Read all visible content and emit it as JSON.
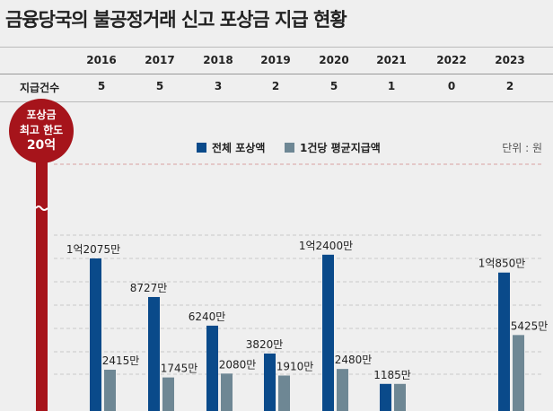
{
  "title": "금융당국의 불공정거래 신고 포상금 지급 현황",
  "row_label": "지급건수",
  "years": [
    "2016",
    "2017",
    "2018",
    "2019",
    "2020",
    "2021",
    "2022",
    "2023"
  ],
  "counts": [
    "5",
    "5",
    "3",
    "2",
    "5",
    "1",
    "0",
    "2"
  ],
  "badge": {
    "line1": "포상금",
    "line2": "최고 한도",
    "line3": "20억"
  },
  "unit": "단위 : 원",
  "colors": {
    "total": "#0a4a8a",
    "avg": "#6e8794",
    "limit": "#a6141b"
  },
  "chart_data": {
    "type": "bar",
    "title": "금융당국의 불공정거래 신고 포상금 지급 현황",
    "categories": [
      "2016",
      "2017",
      "2018",
      "2019",
      "2020",
      "2021",
      "2022",
      "2023"
    ],
    "unit": "만원",
    "series": [
      {
        "name": "전체 포상액",
        "values": [
          12075,
          8727,
          6240,
          3820,
          12400,
          1185,
          0,
          10850
        ],
        "labels": [
          "1억2075만",
          "8727만",
          "6240만",
          "3820만",
          "1억2400만",
          "",
          "",
          "1억850만"
        ]
      },
      {
        "name": "1건당 평균지급액",
        "values": [
          2415,
          1745,
          2080,
          1910,
          2480,
          1185,
          0,
          5425
        ],
        "labels": [
          "2415만",
          "1745만",
          "2080만",
          "1910만",
          "2480만",
          "1185만",
          "",
          "5425만"
        ]
      }
    ],
    "annotation": "포상금 최고 한도 20억 (axis break)"
  }
}
